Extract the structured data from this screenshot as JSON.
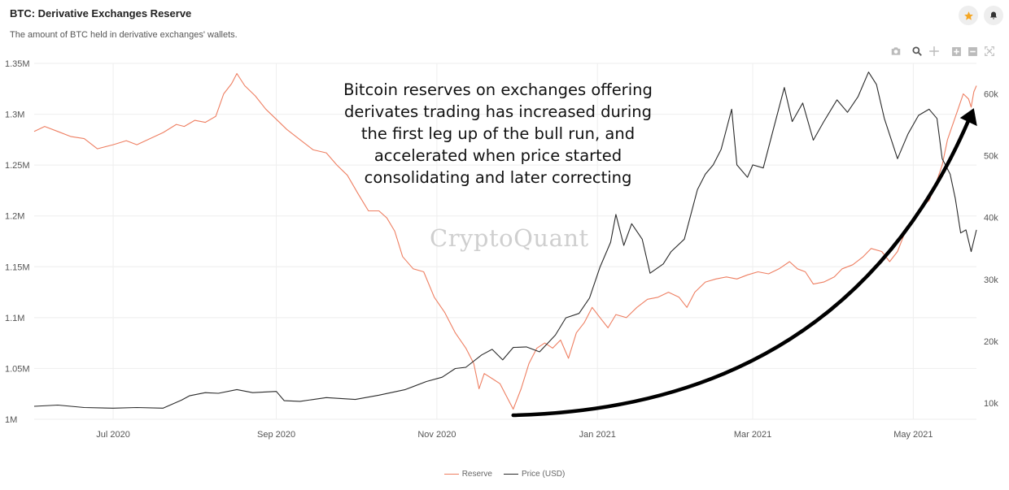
{
  "header": {
    "title": "BTC: Derivative Exchanges Reserve",
    "subtitle": "The amount of BTC held in derivative exchanges' wallets."
  },
  "icons": {
    "favorite": "star-icon",
    "notify": "bell-icon",
    "toolbar": [
      "camera-icon",
      "zoom-icon",
      "pan-icon",
      "zoom-in-icon",
      "zoom-out-icon",
      "autoscale-icon"
    ]
  },
  "colors": {
    "reserve": "#ee7f62",
    "price": "#2a2a2a",
    "star": "#f5a623"
  },
  "annotation_lines": [
    "Bitcoin reserves on exchanges offering",
    "derivates trading has increased during",
    "the first leg up of the bull run, and",
    "accelerated when price started",
    "consolidating and later correcting"
  ],
  "watermark": "CryptoQuant",
  "chart_data": {
    "type": "line",
    "grid": true,
    "legend_position": "bottom-center",
    "x_ticks": [
      "Jul 2020",
      "Sep 2020",
      "Nov 2020",
      "Jan 2021",
      "Mar 2021",
      "May 2021"
    ],
    "x_tick_dates": [
      "2020-07-01",
      "2020-09-01",
      "2020-11-01",
      "2021-01-01",
      "2021-03-01",
      "2021-05-01"
    ],
    "xlim": [
      "2020-06-01",
      "2021-05-25"
    ],
    "y_left": {
      "ticks": [
        "1M",
        "1.05M",
        "1.1M",
        "1.15M",
        "1.2M",
        "1.25M",
        "1.3M",
        "1.35M"
      ],
      "tick_values": [
        1000000,
        1050000,
        1100000,
        1150000,
        1200000,
        1250000,
        1300000,
        1350000
      ],
      "ylim": [
        1000000,
        1350000
      ]
    },
    "y_right": {
      "ticks": [
        "10k",
        "20k",
        "30k",
        "40k",
        "50k",
        "60k"
      ],
      "tick_values": [
        10000,
        20000,
        30000,
        40000,
        50000,
        60000
      ],
      "ylim": [
        7400,
        64900
      ]
    },
    "series": [
      {
        "name": "Reserve",
        "axis": "left",
        "points": [
          [
            "2020-06-01",
            1283000
          ],
          [
            "2020-06-05",
            1288000
          ],
          [
            "2020-06-10",
            1283000
          ],
          [
            "2020-06-15",
            1278000
          ],
          [
            "2020-06-20",
            1276000
          ],
          [
            "2020-06-25",
            1266000
          ],
          [
            "2020-07-01",
            1270000
          ],
          [
            "2020-07-06",
            1274000
          ],
          [
            "2020-07-10",
            1270000
          ],
          [
            "2020-07-15",
            1276000
          ],
          [
            "2020-07-20",
            1282000
          ],
          [
            "2020-07-25",
            1290000
          ],
          [
            "2020-07-28",
            1288000
          ],
          [
            "2020-08-01",
            1294000
          ],
          [
            "2020-08-05",
            1292000
          ],
          [
            "2020-08-09",
            1298000
          ],
          [
            "2020-08-12",
            1320000
          ],
          [
            "2020-08-15",
            1330000
          ],
          [
            "2020-08-17",
            1340000
          ],
          [
            "2020-08-20",
            1328000
          ],
          [
            "2020-08-24",
            1318000
          ],
          [
            "2020-08-28",
            1305000
          ],
          [
            "2020-09-01",
            1295000
          ],
          [
            "2020-09-05",
            1285000
          ],
          [
            "2020-09-10",
            1275000
          ],
          [
            "2020-09-15",
            1265000
          ],
          [
            "2020-09-20",
            1262000
          ],
          [
            "2020-09-24",
            1250000
          ],
          [
            "2020-09-28",
            1240000
          ],
          [
            "2020-10-02",
            1222000
          ],
          [
            "2020-10-06",
            1205000
          ],
          [
            "2020-10-10",
            1205000
          ],
          [
            "2020-10-13",
            1198000
          ],
          [
            "2020-10-16",
            1185000
          ],
          [
            "2020-10-19",
            1160000
          ],
          [
            "2020-10-23",
            1148000
          ],
          [
            "2020-10-27",
            1145000
          ],
          [
            "2020-10-31",
            1120000
          ],
          [
            "2020-11-04",
            1105000
          ],
          [
            "2020-11-08",
            1085000
          ],
          [
            "2020-11-12",
            1070000
          ],
          [
            "2020-11-15",
            1055000
          ],
          [
            "2020-11-17",
            1030000
          ],
          [
            "2020-11-19",
            1045000
          ],
          [
            "2020-11-22",
            1040000
          ],
          [
            "2020-11-25",
            1035000
          ],
          [
            "2020-11-28",
            1020000
          ],
          [
            "2020-11-30",
            1010000
          ],
          [
            "2020-12-03",
            1030000
          ],
          [
            "2020-12-06",
            1055000
          ],
          [
            "2020-12-09",
            1070000
          ],
          [
            "2020-12-12",
            1075000
          ],
          [
            "2020-12-15",
            1070000
          ],
          [
            "2020-12-18",
            1078000
          ],
          [
            "2020-12-21",
            1060000
          ],
          [
            "2020-12-24",
            1085000
          ],
          [
            "2020-12-27",
            1095000
          ],
          [
            "2020-12-30",
            1110000
          ],
          [
            "2021-01-02",
            1100000
          ],
          [
            "2021-01-05",
            1090000
          ],
          [
            "2021-01-08",
            1103000
          ],
          [
            "2021-01-12",
            1100000
          ],
          [
            "2021-01-16",
            1110000
          ],
          [
            "2021-01-20",
            1118000
          ],
          [
            "2021-01-24",
            1120000
          ],
          [
            "2021-01-28",
            1125000
          ],
          [
            "2021-02-01",
            1120000
          ],
          [
            "2021-02-04",
            1110000
          ],
          [
            "2021-02-07",
            1125000
          ],
          [
            "2021-02-11",
            1135000
          ],
          [
            "2021-02-15",
            1138000
          ],
          [
            "2021-02-19",
            1140000
          ],
          [
            "2021-02-23",
            1138000
          ],
          [
            "2021-02-27",
            1142000
          ],
          [
            "2021-03-03",
            1145000
          ],
          [
            "2021-03-07",
            1143000
          ],
          [
            "2021-03-11",
            1148000
          ],
          [
            "2021-03-15",
            1155000
          ],
          [
            "2021-03-18",
            1148000
          ],
          [
            "2021-03-21",
            1145000
          ],
          [
            "2021-03-24",
            1133000
          ],
          [
            "2021-03-28",
            1135000
          ],
          [
            "2021-04-01",
            1140000
          ],
          [
            "2021-04-04",
            1148000
          ],
          [
            "2021-04-08",
            1152000
          ],
          [
            "2021-04-12",
            1160000
          ],
          [
            "2021-04-15",
            1168000
          ],
          [
            "2021-04-19",
            1165000
          ],
          [
            "2021-04-22",
            1155000
          ],
          [
            "2021-04-25",
            1165000
          ],
          [
            "2021-04-28",
            1185000
          ],
          [
            "2021-05-01",
            1195000
          ],
          [
            "2021-05-04",
            1210000
          ],
          [
            "2021-05-07",
            1215000
          ],
          [
            "2021-05-10",
            1235000
          ],
          [
            "2021-05-12",
            1250000
          ],
          [
            "2021-05-14",
            1275000
          ],
          [
            "2021-05-16",
            1290000
          ],
          [
            "2021-05-18",
            1305000
          ],
          [
            "2021-05-20",
            1320000
          ],
          [
            "2021-05-22",
            1315000
          ],
          [
            "2021-05-23",
            1307000
          ],
          [
            "2021-05-24",
            1322000
          ],
          [
            "2021-05-25",
            1328000
          ]
        ]
      },
      {
        "name": "Price (USD)",
        "axis": "right",
        "points": [
          [
            "2020-06-01",
            9500
          ],
          [
            "2020-06-10",
            9700
          ],
          [
            "2020-06-20",
            9300
          ],
          [
            "2020-07-01",
            9200
          ],
          [
            "2020-07-10",
            9300
          ],
          [
            "2020-07-20",
            9200
          ],
          [
            "2020-07-27",
            10500
          ],
          [
            "2020-07-30",
            11200
          ],
          [
            "2020-08-05",
            11700
          ],
          [
            "2020-08-10",
            11600
          ],
          [
            "2020-08-17",
            12200
          ],
          [
            "2020-08-23",
            11700
          ],
          [
            "2020-09-01",
            11900
          ],
          [
            "2020-09-04",
            10400
          ],
          [
            "2020-09-10",
            10300
          ],
          [
            "2020-09-20",
            10900
          ],
          [
            "2020-10-01",
            10600
          ],
          [
            "2020-10-10",
            11300
          ],
          [
            "2020-10-20",
            12200
          ],
          [
            "2020-10-28",
            13500
          ],
          [
            "2020-11-03",
            14200
          ],
          [
            "2020-11-08",
            15600
          ],
          [
            "2020-11-12",
            15800
          ],
          [
            "2020-11-18",
            17800
          ],
          [
            "2020-11-22",
            18700
          ],
          [
            "2020-11-26",
            17000
          ],
          [
            "2020-11-30",
            19000
          ],
          [
            "2020-12-05",
            19100
          ],
          [
            "2020-12-10",
            18300
          ],
          [
            "2020-12-16",
            21000
          ],
          [
            "2020-12-20",
            23800
          ],
          [
            "2020-12-25",
            24500
          ],
          [
            "2020-12-29",
            27000
          ],
          [
            "2021-01-02",
            32000
          ],
          [
            "2021-01-06",
            36000
          ],
          [
            "2021-01-08",
            40500
          ],
          [
            "2021-01-11",
            35500
          ],
          [
            "2021-01-14",
            39000
          ],
          [
            "2021-01-18",
            36500
          ],
          [
            "2021-01-21",
            31000
          ],
          [
            "2021-01-26",
            32500
          ],
          [
            "2021-01-29",
            34500
          ],
          [
            "2021-02-03",
            36500
          ],
          [
            "2021-02-08",
            44500
          ],
          [
            "2021-02-11",
            47000
          ],
          [
            "2021-02-14",
            48500
          ],
          [
            "2021-02-17",
            51000
          ],
          [
            "2021-02-21",
            57500
          ],
          [
            "2021-02-23",
            48500
          ],
          [
            "2021-02-27",
            46500
          ],
          [
            "2021-03-01",
            48500
          ],
          [
            "2021-03-05",
            48000
          ],
          [
            "2021-03-09",
            54500
          ],
          [
            "2021-03-13",
            61000
          ],
          [
            "2021-03-16",
            55500
          ],
          [
            "2021-03-20",
            58500
          ],
          [
            "2021-03-24",
            52500
          ],
          [
            "2021-03-28",
            55500
          ],
          [
            "2021-04-02",
            59000
          ],
          [
            "2021-04-06",
            57000
          ],
          [
            "2021-04-10",
            59500
          ],
          [
            "2021-04-14",
            63500
          ],
          [
            "2021-04-17",
            61500
          ],
          [
            "2021-04-20",
            56000
          ],
          [
            "2021-04-25",
            49500
          ],
          [
            "2021-04-29",
            53500
          ],
          [
            "2021-05-03",
            56500
          ],
          [
            "2021-05-07",
            57500
          ],
          [
            "2021-05-10",
            56000
          ],
          [
            "2021-05-12",
            49500
          ],
          [
            "2021-05-15",
            47000
          ],
          [
            "2021-05-17",
            43000
          ],
          [
            "2021-05-19",
            37500
          ],
          [
            "2021-05-21",
            38000
          ],
          [
            "2021-05-23",
            34500
          ],
          [
            "2021-05-25",
            38000
          ]
        ]
      }
    ],
    "arrow": {
      "from": [
        "2020-11-30",
        1004000
      ],
      "to": [
        "2021-05-24",
        1306000
      ]
    }
  }
}
